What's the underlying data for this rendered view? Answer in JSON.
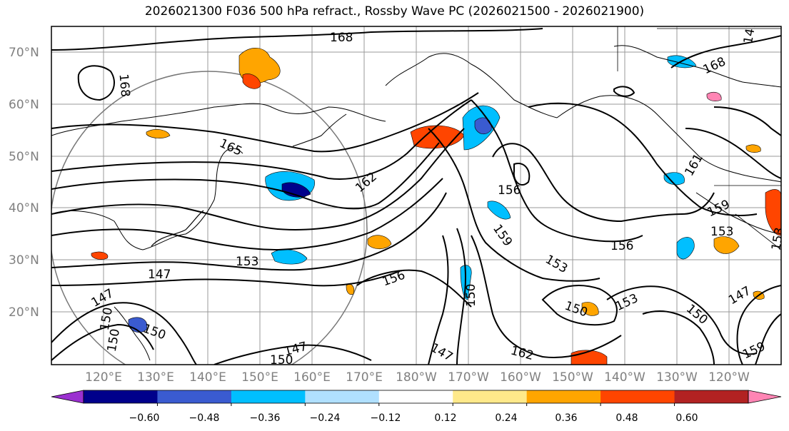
{
  "title": "2026021300 F036 500 hPa refract., Rossby Wave PC (2026021500 - 2026021900)",
  "lat_labels": [
    "70°N",
    "60°N",
    "50°N",
    "40°N",
    "30°N",
    "20°N"
  ],
  "lon_labels": [
    "120°E",
    "130°E",
    "140°E",
    "150°E",
    "160°E",
    "170°E",
    "180°W",
    "170°W",
    "160°W",
    "150°W",
    "140°W",
    "130°W",
    "120°W"
  ],
  "contour_labels": [
    "168",
    "168",
    "168",
    "165",
    "162",
    "156",
    "159",
    "156",
    "153",
    "156",
    "153",
    "147",
    "150",
    "150",
    "147",
    "162",
    "150",
    "153",
    "150",
    "147",
    "159",
    "150",
    "147",
    "159",
    "153",
    "153",
    "150",
    "147",
    "150",
    "147",
    "161"
  ],
  "colorbar": {
    "tick_labels": [
      "−0.60",
      "−0.48",
      "−0.36",
      "−0.24",
      "−0.12",
      "0.12",
      "0.24",
      "0.36",
      "0.48",
      "0.60"
    ],
    "colors": [
      "#9b30d0",
      "#00008b",
      "#3a5bd0",
      "#00bfff",
      "#b0e0ff",
      "#ffffff",
      "#ffe98a",
      "#ffa500",
      "#ff4500",
      "#b22222",
      "#ff85b4"
    ]
  },
  "colors": {
    "land": "#000000",
    "grid": "#808080",
    "contour": "#000000"
  }
}
